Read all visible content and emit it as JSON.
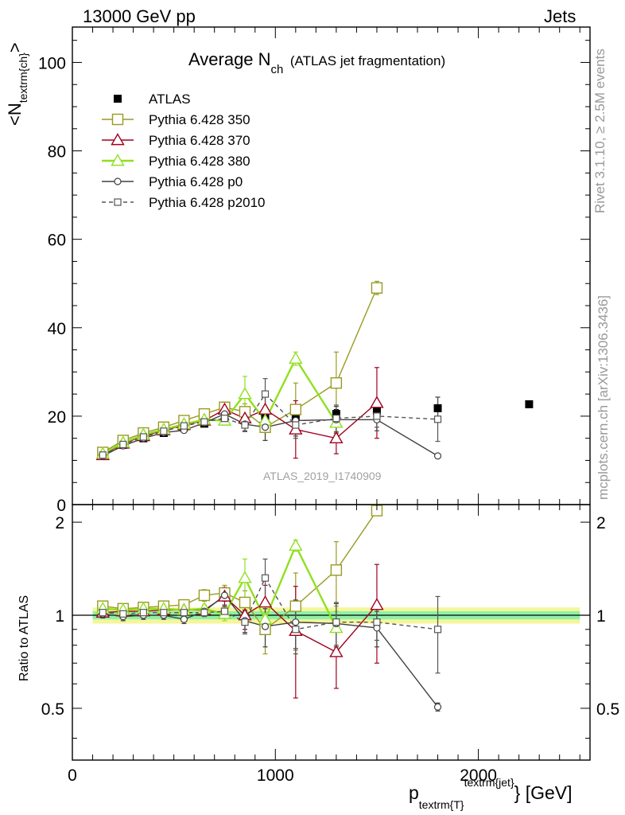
{
  "header": {
    "left": "13000 GeV pp",
    "right": "Jets"
  },
  "side_labels": {
    "rivet": "Rivet 3.1.10, ≥ 2.5M events",
    "mcplots": "mcplots.cern.ch [arXiv:1306.3436]"
  },
  "watermark": "ATLAS_2019_I1740909",
  "chart_data": [
    {
      "type": "scatter",
      "panel": "main",
      "title_main": "Average N",
      "title_sub": "ch",
      "title_rest": "(ATLAS jet fragmentation)",
      "ylabel": "<N_textrm{ch}>",
      "ylabel_parts": [
        "<N",
        "textrm{ch}",
        ">"
      ],
      "xlabel_parts": [
        "p",
        "textrm{T}",
        "textrm{jet}",
        "} [GeV]"
      ],
      "xlim": [
        0,
        2550
      ],
      "ylim": [
        0,
        108
      ],
      "yticks": [
        0,
        20,
        40,
        60,
        80,
        100
      ],
      "xticks": [
        0,
        1000,
        2000
      ],
      "log_y": false,
      "grid": false,
      "legend_position": "top-left",
      "series": [
        {
          "name": "ATLAS",
          "color": "#000000",
          "marker": "filled-square",
          "line": "none",
          "x": [
            150,
            250,
            350,
            450,
            550,
            650,
            750,
            850,
            950,
            1100,
            1300,
            1500,
            1800,
            2250
          ],
          "y": [
            11.0,
            13.5,
            15.0,
            16.2,
            17.5,
            18.3,
            18.8,
            19.0,
            19.5,
            20.0,
            20.5,
            21.2,
            21.8,
            22.7
          ],
          "yerr": [
            0.5,
            0.5,
            0.5,
            0.5,
            0.5,
            0.6,
            0.6,
            0.7,
            0.8,
            0.9,
            1.0,
            1.1,
            2.5,
            0.4
          ]
        },
        {
          "name": "Pythia 6.428 350",
          "color": "#9a9a24",
          "marker": "open-square",
          "line": "solid",
          "x": [
            150,
            250,
            350,
            450,
            550,
            650,
            750,
            850,
            950,
            1100,
            1300,
            1500
          ],
          "y": [
            11.8,
            14.5,
            16.2,
            17.5,
            19.0,
            20.5,
            22.0,
            21.0,
            17.5,
            21.5,
            27.5,
            49.0
          ],
          "yerr": [
            0.5,
            0.5,
            0.5,
            0.5,
            0.6,
            0.8,
            1.2,
            1.8,
            3.0,
            6.0,
            7.0,
            1.5
          ]
        },
        {
          "name": "Pythia 6.428 370",
          "color": "#a00020",
          "marker": "open-triangle",
          "line": "solid",
          "x": [
            150,
            250,
            350,
            450,
            550,
            650,
            750,
            850,
            950,
            1100,
            1300,
            1500
          ],
          "y": [
            11.2,
            13.8,
            15.5,
            16.8,
            18.0,
            19.0,
            21.5,
            19.5,
            21.5,
            17.0,
            15.0,
            23.0
          ],
          "yerr": [
            0.5,
            0.5,
            0.5,
            0.5,
            0.5,
            0.7,
            1.5,
            2.0,
            3.0,
            6.5,
            3.5,
            8.0
          ]
        },
        {
          "name": "Pythia 6.428 380",
          "color": "#90e020",
          "marker": "open-triangle",
          "line": "solid",
          "x": [
            150,
            250,
            350,
            450,
            550,
            650,
            750,
            850,
            950,
            1100,
            1300
          ],
          "y": [
            11.5,
            14.0,
            15.8,
            17.0,
            18.2,
            19.2,
            19.0,
            25.0,
            19.0,
            33.0,
            18.5
          ],
          "yerr": [
            0.5,
            0.5,
            0.5,
            0.5,
            0.5,
            0.6,
            1.0,
            4.0,
            2.0,
            1.5,
            2.5
          ]
        },
        {
          "name": "Pythia 6.428 p0",
          "color": "#404040",
          "marker": "open-circle",
          "line": "solid",
          "x": [
            150,
            250,
            350,
            450,
            550,
            650,
            750,
            850,
            950,
            1100,
            1300,
            1500,
            1800
          ],
          "y": [
            11.0,
            13.3,
            15.0,
            16.3,
            16.8,
            18.5,
            20.5,
            18.2,
            17.5,
            19.0,
            19.2,
            19.2,
            11.0
          ],
          "yerr": [
            0.4,
            0.4,
            0.4,
            0.4,
            0.5,
            0.6,
            0.8,
            1.5,
            3.0,
            3.5,
            3.0,
            2.5,
            0.3
          ]
        },
        {
          "name": "Pythia 6.428 p2010",
          "color": "#555555",
          "marker": "open-square-small",
          "line": "dashed",
          "x": [
            150,
            250,
            350,
            450,
            550,
            650,
            750,
            850,
            950,
            1100,
            1300,
            1500,
            1800
          ],
          "y": [
            11.2,
            13.6,
            15.3,
            16.6,
            17.8,
            18.7,
            19.5,
            18.0,
            25.0,
            18.0,
            19.5,
            20.0,
            19.3
          ],
          "yerr": [
            0.4,
            0.4,
            0.4,
            0.4,
            0.5,
            0.6,
            0.8,
            1.5,
            3.5,
            3.0,
            3.0,
            2.5,
            5.0
          ]
        }
      ]
    },
    {
      "type": "scatter",
      "panel": "ratio",
      "ylabel": "Ratio to ATLAS",
      "xlim": [
        0,
        2550
      ],
      "ylim": [
        0.34,
        2.28
      ],
      "log_y": true,
      "yticks": [
        0.5,
        1,
        2
      ],
      "xticks": [
        0,
        1000,
        2000
      ],
      "band": {
        "x_range": [
          100,
          2500
        ],
        "yellow": [
          0.94,
          1.06
        ],
        "green": [
          0.97,
          1.03
        ]
      },
      "series": [
        {
          "name": "Pythia 6.428 350",
          "color": "#9a9a24",
          "marker": "open-square",
          "line": "solid",
          "x": [
            150,
            250,
            350,
            450,
            550,
            650,
            750,
            850,
            950,
            1100,
            1300,
            1500
          ],
          "y": [
            1.07,
            1.05,
            1.06,
            1.07,
            1.08,
            1.16,
            1.18,
            1.1,
            0.9,
            1.07,
            1.4,
            2.18
          ],
          "yerr": [
            0.04,
            0.03,
            0.03,
            0.03,
            0.03,
            0.05,
            0.07,
            0.1,
            0.15,
            0.3,
            0.33,
            0.07
          ]
        },
        {
          "name": "Pythia 6.428 370",
          "color": "#a00020",
          "marker": "open-triangle",
          "line": "solid",
          "x": [
            150,
            250,
            350,
            450,
            550,
            650,
            750,
            850,
            950,
            1100,
            1300,
            1500
          ],
          "y": [
            1.02,
            1.03,
            1.03,
            1.04,
            1.04,
            1.04,
            1.15,
            1.0,
            1.1,
            0.89,
            0.76,
            1.08
          ],
          "yerr": [
            0.03,
            0.03,
            0.03,
            0.03,
            0.03,
            0.04,
            0.08,
            0.1,
            0.15,
            0.35,
            0.18,
            0.38
          ]
        },
        {
          "name": "Pythia 6.428 380",
          "color": "#90e020",
          "marker": "open-triangle",
          "line": "solid",
          "x": [
            150,
            250,
            350,
            450,
            550,
            650,
            750,
            850,
            950,
            1100,
            1300
          ],
          "y": [
            1.05,
            1.04,
            1.05,
            1.05,
            1.04,
            1.05,
            1.01,
            1.32,
            0.97,
            1.68,
            0.91
          ],
          "yerr": [
            0.03,
            0.03,
            0.03,
            0.03,
            0.03,
            0.03,
            0.05,
            0.2,
            0.1,
            0.07,
            0.12
          ]
        },
        {
          "name": "Pythia 6.428 p0",
          "color": "#404040",
          "marker": "open-circle",
          "line": "solid",
          "x": [
            150,
            250,
            350,
            450,
            550,
            650,
            750,
            850,
            950,
            1100,
            1300,
            1500,
            1800
          ],
          "y": [
            1.01,
            0.99,
            1.0,
            1.0,
            0.97,
            1.03,
            1.16,
            0.96,
            0.92,
            0.95,
            0.94,
            0.91,
            0.505
          ],
          "yerr": [
            0.03,
            0.03,
            0.03,
            0.03,
            0.03,
            0.03,
            0.05,
            0.08,
            0.13,
            0.17,
            0.15,
            0.12,
            0.015
          ]
        },
        {
          "name": "Pythia 6.428 p2010",
          "color": "#555555",
          "marker": "open-square-small",
          "line": "dashed",
          "x": [
            150,
            250,
            350,
            450,
            550,
            650,
            750,
            850,
            950,
            1100,
            1300,
            1500,
            1800
          ],
          "y": [
            1.02,
            1.01,
            1.02,
            1.02,
            1.02,
            1.02,
            1.03,
            0.95,
            1.32,
            0.9,
            0.95,
            0.95,
            0.9
          ],
          "yerr": [
            0.03,
            0.03,
            0.03,
            0.03,
            0.03,
            0.03,
            0.05,
            0.08,
            0.2,
            0.15,
            0.15,
            0.12,
            0.25
          ]
        }
      ]
    }
  ]
}
